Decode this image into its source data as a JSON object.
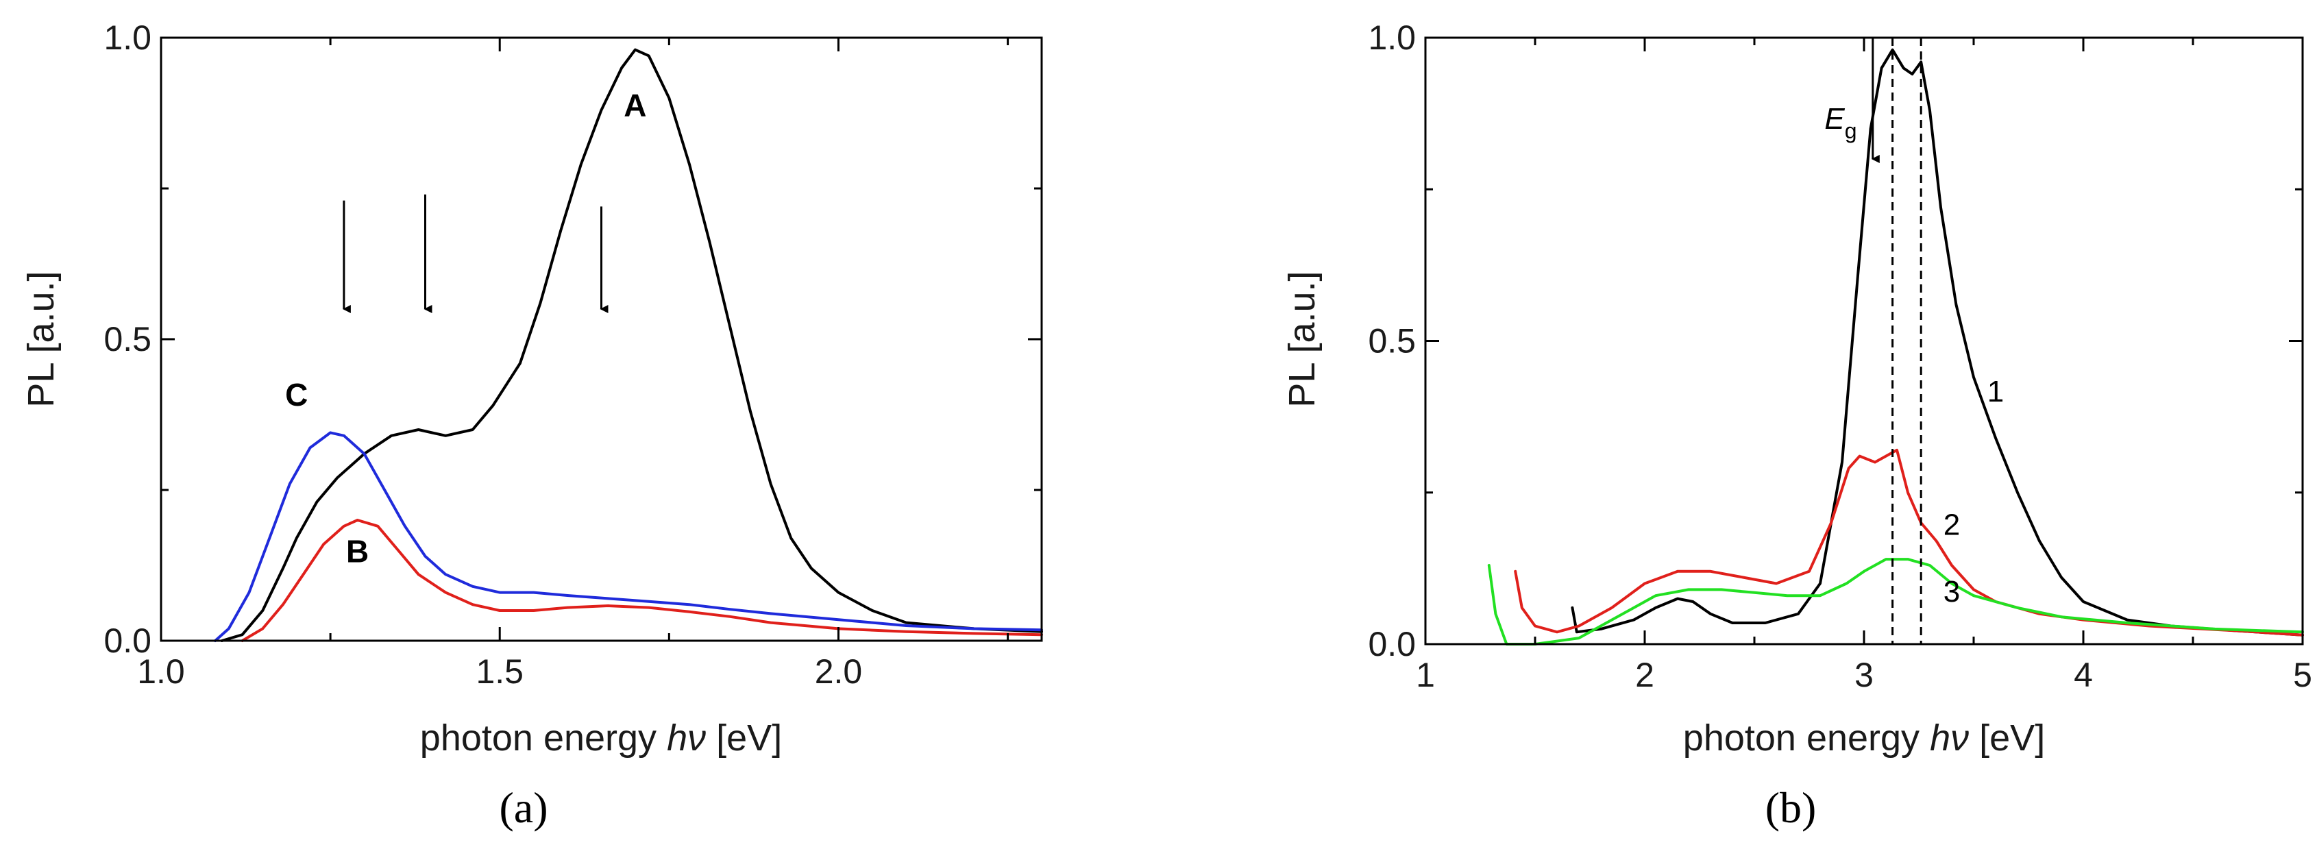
{
  "chart_data": [
    {
      "type": "line",
      "panel_label": "(a)",
      "xlabel": "photon energy",
      "xlabel_symbol": "hν",
      "xlabel_unit": "[eV]",
      "ylabel": "PL [a.u.]",
      "xlim": [
        1.0,
        2.3
      ],
      "ylim": [
        0.0,
        1.0
      ],
      "xticks": [
        "1.0",
        "1.5",
        "2.0"
      ],
      "xtick_values": [
        1.0,
        1.5,
        2.0
      ],
      "yticks": [
        "0.0",
        "0.5",
        "1.0"
      ],
      "ytick_values": [
        0.0,
        0.5,
        1.0
      ],
      "series": [
        {
          "name": "A",
          "color": "#000000",
          "points": [
            [
              1.09,
              0.0
            ],
            [
              1.12,
              0.01
            ],
            [
              1.15,
              0.05
            ],
            [
              1.18,
              0.12
            ],
            [
              1.2,
              0.17
            ],
            [
              1.23,
              0.23
            ],
            [
              1.26,
              0.27
            ],
            [
              1.3,
              0.31
            ],
            [
              1.34,
              0.34
            ],
            [
              1.38,
              0.35
            ],
            [
              1.42,
              0.34
            ],
            [
              1.46,
              0.35
            ],
            [
              1.49,
              0.39
            ],
            [
              1.53,
              0.46
            ],
            [
              1.56,
              0.56
            ],
            [
              1.59,
              0.68
            ],
            [
              1.62,
              0.79
            ],
            [
              1.65,
              0.88
            ],
            [
              1.68,
              0.95
            ],
            [
              1.7,
              0.98
            ],
            [
              1.72,
              0.97
            ],
            [
              1.75,
              0.9
            ],
            [
              1.78,
              0.79
            ],
            [
              1.81,
              0.66
            ],
            [
              1.84,
              0.52
            ],
            [
              1.87,
              0.38
            ],
            [
              1.9,
              0.26
            ],
            [
              1.93,
              0.17
            ],
            [
              1.96,
              0.12
            ],
            [
              2.0,
              0.08
            ],
            [
              2.05,
              0.05
            ],
            [
              2.1,
              0.03
            ],
            [
              2.2,
              0.02
            ],
            [
              2.3,
              0.015
            ]
          ],
          "label_at": [
            1.7,
            0.87
          ]
        },
        {
          "name": "B",
          "color": "#e0201b",
          "points": [
            [
              1.12,
              0.0
            ],
            [
              1.15,
              0.02
            ],
            [
              1.18,
              0.06
            ],
            [
              1.21,
              0.11
            ],
            [
              1.24,
              0.16
            ],
            [
              1.27,
              0.19
            ],
            [
              1.29,
              0.2
            ],
            [
              1.32,
              0.19
            ],
            [
              1.35,
              0.15
            ],
            [
              1.38,
              0.11
            ],
            [
              1.42,
              0.08
            ],
            [
              1.46,
              0.06
            ],
            [
              1.5,
              0.05
            ],
            [
              1.55,
              0.05
            ],
            [
              1.6,
              0.055
            ],
            [
              1.66,
              0.058
            ],
            [
              1.72,
              0.055
            ],
            [
              1.78,
              0.048
            ],
            [
              1.84,
              0.04
            ],
            [
              1.9,
              0.03
            ],
            [
              2.0,
              0.02
            ],
            [
              2.1,
              0.015
            ],
            [
              2.2,
              0.012
            ],
            [
              2.3,
              0.01
            ]
          ],
          "label_at": [
            1.29,
            0.13
          ]
        },
        {
          "name": "C",
          "color": "#1f2bdb",
          "points": [
            [
              1.08,
              0.0
            ],
            [
              1.1,
              0.02
            ],
            [
              1.13,
              0.08
            ],
            [
              1.16,
              0.17
            ],
            [
              1.19,
              0.26
            ],
            [
              1.22,
              0.32
            ],
            [
              1.25,
              0.345
            ],
            [
              1.27,
              0.34
            ],
            [
              1.3,
              0.31
            ],
            [
              1.33,
              0.25
            ],
            [
              1.36,
              0.19
            ],
            [
              1.39,
              0.14
            ],
            [
              1.42,
              0.11
            ],
            [
              1.46,
              0.09
            ],
            [
              1.5,
              0.08
            ],
            [
              1.55,
              0.08
            ],
            [
              1.6,
              0.075
            ],
            [
              1.66,
              0.07
            ],
            [
              1.72,
              0.065
            ],
            [
              1.78,
              0.06
            ],
            [
              1.84,
              0.052
            ],
            [
              1.9,
              0.045
            ],
            [
              2.0,
              0.035
            ],
            [
              2.1,
              0.025
            ],
            [
              2.2,
              0.02
            ],
            [
              2.3,
              0.018
            ]
          ],
          "label_at": [
            1.2,
            0.39
          ]
        }
      ],
      "annotations": [
        {
          "kind": "arrow",
          "x": 1.27,
          "y_from": 0.73,
          "y_to": 0.55
        },
        {
          "kind": "arrow",
          "x": 1.39,
          "y_from": 0.74,
          "y_to": 0.55
        },
        {
          "kind": "arrow",
          "x": 1.65,
          "y_from": 0.72,
          "y_to": 0.55
        }
      ]
    },
    {
      "type": "line",
      "panel_label": "(b)",
      "xlabel": "photon energy",
      "xlabel_symbol": "hν",
      "xlabel_unit": "[eV]",
      "ylabel": "PL [a.u.]",
      "xlim": [
        1,
        5
      ],
      "ylim": [
        0.0,
        1.0
      ],
      "xticks": [
        "1",
        "2",
        "3",
        "4",
        "5"
      ],
      "xtick_values": [
        1,
        2,
        3,
        4,
        5
      ],
      "yticks": [
        "0.0",
        "0.5",
        "1.0"
      ],
      "ytick_values": [
        0.0,
        0.5,
        1.0
      ],
      "series": [
        {
          "name": "1",
          "color": "#000000",
          "points": [
            [
              1.67,
              0.06
            ],
            [
              1.69,
              0.02
            ],
            [
              1.8,
              0.025
            ],
            [
              1.95,
              0.04
            ],
            [
              2.05,
              0.06
            ],
            [
              2.15,
              0.075
            ],
            [
              2.22,
              0.07
            ],
            [
              2.3,
              0.05
            ],
            [
              2.4,
              0.035
            ],
            [
              2.55,
              0.035
            ],
            [
              2.7,
              0.05
            ],
            [
              2.8,
              0.1
            ],
            [
              2.9,
              0.3
            ],
            [
              2.97,
              0.6
            ],
            [
              3.03,
              0.85
            ],
            [
              3.08,
              0.95
            ],
            [
              3.13,
              0.98
            ],
            [
              3.18,
              0.95
            ],
            [
              3.22,
              0.94
            ],
            [
              3.26,
              0.96
            ],
            [
              3.3,
              0.88
            ],
            [
              3.35,
              0.72
            ],
            [
              3.42,
              0.56
            ],
            [
              3.5,
              0.44
            ],
            [
              3.6,
              0.34
            ],
            [
              3.7,
              0.25
            ],
            [
              3.8,
              0.17
            ],
            [
              3.9,
              0.11
            ],
            [
              4.0,
              0.07
            ],
            [
              4.2,
              0.04
            ],
            [
              4.4,
              0.03
            ],
            [
              4.7,
              0.022
            ],
            [
              5.0,
              0.015
            ]
          ],
          "label_at": [
            3.6,
            0.4
          ]
        },
        {
          "name": "2",
          "color": "#e0201b",
          "points": [
            [
              1.41,
              0.12
            ],
            [
              1.44,
              0.06
            ],
            [
              1.5,
              0.03
            ],
            [
              1.6,
              0.02
            ],
            [
              1.7,
              0.03
            ],
            [
              1.85,
              0.06
            ],
            [
              2.0,
              0.1
            ],
            [
              2.15,
              0.12
            ],
            [
              2.3,
              0.12
            ],
            [
              2.45,
              0.11
            ],
            [
              2.6,
              0.1
            ],
            [
              2.75,
              0.12
            ],
            [
              2.85,
              0.2
            ],
            [
              2.93,
              0.29
            ],
            [
              2.98,
              0.31
            ],
            [
              3.05,
              0.3
            ],
            [
              3.1,
              0.31
            ],
            [
              3.15,
              0.32
            ],
            [
              3.2,
              0.25
            ],
            [
              3.26,
              0.2
            ],
            [
              3.33,
              0.17
            ],
            [
              3.4,
              0.13
            ],
            [
              3.5,
              0.09
            ],
            [
              3.6,
              0.07
            ],
            [
              3.8,
              0.05
            ],
            [
              4.0,
              0.04
            ],
            [
              4.3,
              0.03
            ],
            [
              4.7,
              0.022
            ],
            [
              5.0,
              0.015
            ]
          ],
          "label_at": [
            3.4,
            0.18
          ]
        },
        {
          "name": "3",
          "color": "#22e022",
          "points": [
            [
              1.29,
              0.13
            ],
            [
              1.32,
              0.05
            ],
            [
              1.37,
              0.0
            ],
            [
              1.5,
              0.0
            ],
            [
              1.7,
              0.01
            ],
            [
              1.9,
              0.05
            ],
            [
              2.05,
              0.08
            ],
            [
              2.2,
              0.09
            ],
            [
              2.35,
              0.09
            ],
            [
              2.5,
              0.085
            ],
            [
              2.65,
              0.08
            ],
            [
              2.8,
              0.08
            ],
            [
              2.92,
              0.1
            ],
            [
              3.0,
              0.12
            ],
            [
              3.1,
              0.14
            ],
            [
              3.2,
              0.14
            ],
            [
              3.3,
              0.13
            ],
            [
              3.4,
              0.1
            ],
            [
              3.5,
              0.08
            ],
            [
              3.7,
              0.06
            ],
            [
              3.9,
              0.045
            ],
            [
              4.2,
              0.035
            ],
            [
              4.6,
              0.025
            ],
            [
              5.0,
              0.02
            ]
          ],
          "label_at": [
            3.4,
            0.07
          ]
        }
      ],
      "annotations": [
        {
          "kind": "arrow",
          "x": 3.04,
          "y_from": 1.0,
          "y_to": 0.8
        },
        {
          "kind": "label",
          "text": "E",
          "subscript": "g",
          "x": 2.82,
          "y": 0.85
        },
        {
          "kind": "dashed_vline",
          "x": 3.13
        },
        {
          "kind": "dashed_vline",
          "x": 3.26
        }
      ]
    }
  ]
}
